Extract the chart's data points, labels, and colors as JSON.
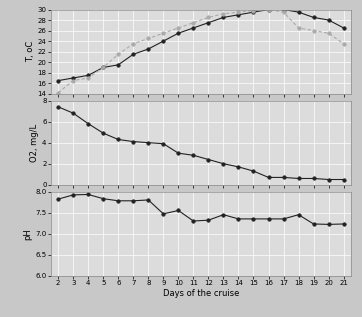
{
  "days": [
    2,
    3,
    4,
    5,
    6,
    7,
    8,
    9,
    10,
    11,
    12,
    13,
    14,
    15,
    16,
    17,
    18,
    19,
    20,
    21
  ],
  "temp_ballast": [
    16.5,
    17.0,
    17.5,
    19.0,
    19.5,
    21.5,
    22.5,
    24.0,
    25.5,
    26.5,
    27.5,
    28.5,
    29.0,
    29.5,
    30.0,
    30.0,
    29.5,
    28.5,
    28.0,
    26.5
  ],
  "temp_sea": [
    14.2,
    16.5,
    17.0,
    19.0,
    21.5,
    23.5,
    24.5,
    25.5,
    26.5,
    27.5,
    28.5,
    29.2,
    29.5,
    29.8,
    30.0,
    29.5,
    26.5,
    26.0,
    25.5,
    23.5
  ],
  "o2": [
    7.4,
    6.8,
    5.8,
    4.9,
    4.3,
    4.1,
    4.0,
    3.9,
    3.0,
    2.8,
    2.4,
    2.0,
    1.7,
    1.3,
    0.7,
    0.7,
    0.6,
    0.6,
    0.5,
    0.5
  ],
  "ph_days": [
    2,
    3,
    4,
    5,
    6,
    7,
    8,
    9,
    10,
    11,
    12,
    13,
    14,
    15,
    16,
    17,
    18,
    19,
    20,
    21
  ],
  "ph_vals": [
    7.82,
    7.92,
    7.93,
    7.83,
    7.78,
    7.78,
    7.8,
    7.47,
    7.55,
    7.3,
    7.32,
    7.45,
    7.35,
    7.35,
    7.35,
    7.35,
    7.45,
    7.23,
    7.22,
    7.23
  ],
  "temp_yticks": [
    14,
    16,
    18,
    20,
    22,
    24,
    26,
    28,
    30
  ],
  "o2_yticks": [
    0.0,
    2.0,
    4.0,
    6.0,
    8.0
  ],
  "ph_yticks": [
    6.0,
    6.5,
    7.0,
    7.5,
    8.0
  ],
  "xticks": [
    2,
    3,
    4,
    5,
    6,
    7,
    8,
    9,
    10,
    11,
    12,
    13,
    14,
    15,
    16,
    17,
    18,
    19,
    20,
    21
  ],
  "xlabel": "Days of the cruise",
  "ylabel_temp": "T, oC",
  "ylabel_o2": "O2, mg/L",
  "ylabel_ph": "pH",
  "color_ballast": "#222222",
  "color_sea": "#aaaaaa",
  "bg_color": "#dcdcdc",
  "fig_bg": "#c8c8c8",
  "marker_size": 2.5,
  "linewidth": 0.8,
  "tick_fontsize": 5,
  "label_fontsize": 6
}
